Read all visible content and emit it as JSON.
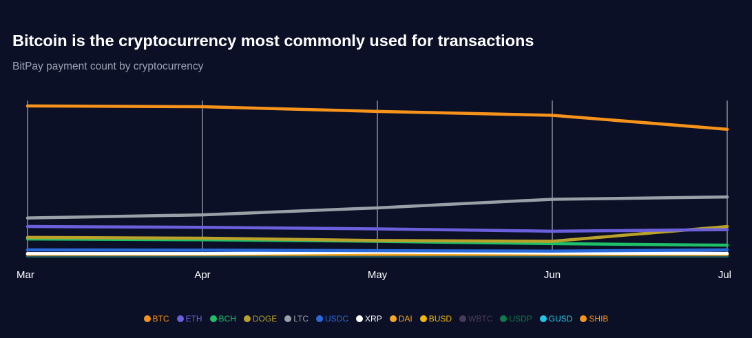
{
  "chart_data": {
    "type": "line",
    "title": "Bitcoin is the cryptocurrency most commonly used for transactions",
    "subtitle": "BitPay payment count by cryptocurrency",
    "xlabel": "",
    "ylabel": "",
    "categories": [
      "Mar",
      "Apr",
      "May",
      "Jun",
      "Jul"
    ],
    "ylim": [
      0,
      100
    ],
    "grid": "vertical",
    "legend_position": "bottom",
    "series": [
      {
        "name": "BTC",
        "color": "#f7931a",
        "values": [
          96.5,
          96,
          93,
          90.5,
          81.5
        ]
      },
      {
        "name": "LTC",
        "color": "#9aa0a8",
        "values": [
          24.5,
          26.5,
          31,
          36.5,
          38
        ]
      },
      {
        "name": "ETH",
        "color": "#6b5fdc",
        "values": [
          19,
          18.5,
          17.5,
          16,
          17
        ]
      },
      {
        "name": "DOGE",
        "color": "#b9a12a",
        "values": [
          12,
          11.5,
          10,
          9.5,
          19
        ]
      },
      {
        "name": "BCH",
        "color": "#1fbf6a",
        "values": [
          11,
          10.5,
          9.5,
          8,
          7
        ]
      },
      {
        "name": "USDC",
        "color": "#2a6ad8",
        "values": [
          4,
          3.8,
          3.5,
          3.2,
          4
        ]
      },
      {
        "name": "XRP",
        "color": "#ffffff",
        "values": [
          1.6,
          1.6,
          2.5,
          2,
          1.7
        ]
      },
      {
        "name": "DAI",
        "color": "#f5a623",
        "values": [
          1.6,
          1.6,
          1.6,
          1.6,
          1.6
        ]
      },
      {
        "name": "BUSD",
        "color": "#f0b90b",
        "values": [
          1.2,
          1.2,
          1.2,
          1.2,
          1.2
        ]
      },
      {
        "name": "WBTC",
        "color": "#4a3b5e",
        "values": [
          0.7,
          0.7,
          0.7,
          0.7,
          0.7
        ]
      },
      {
        "name": "USDP",
        "color": "#0f7a4a",
        "values": [
          0.4,
          0.4,
          0.4,
          0.4,
          0.4
        ]
      },
      {
        "name": "GUSD",
        "color": "#1ec8e6",
        "values": [
          0.2,
          0.2,
          0.2,
          0.2,
          0.2
        ]
      },
      {
        "name": "SHIB",
        "color": "#f7931a",
        "values": [
          0.9,
          0.9,
          0.9,
          0.9,
          0.9
        ]
      }
    ],
    "legend_order": [
      "BTC",
      "ETH",
      "BCH",
      "DOGE",
      "LTC",
      "USDC",
      "XRP",
      "DAI",
      "BUSD",
      "WBTC",
      "USDP",
      "GUSD",
      "SHIB"
    ]
  }
}
